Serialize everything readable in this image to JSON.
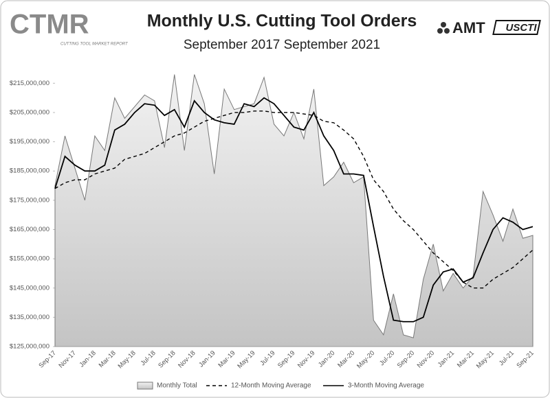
{
  "chart_data": {
    "type": "area_line",
    "title": "Monthly U.S. Cutting Tool Orders",
    "subtitle": "September 2017 September 2021",
    "branding": [
      "CTMR",
      "CUTTING TOOL MARKET REPORT",
      "AMT",
      "USCTI"
    ],
    "categories": [
      "Sep-17",
      null,
      "Nov-17",
      null,
      "Jan-18",
      null,
      "Mar-18",
      null,
      "May-18",
      null,
      "Jul-18",
      null,
      "Sep-18",
      null,
      "Nov-18",
      null,
      "Jan-19",
      null,
      "Mar-19",
      null,
      "May-19",
      null,
      "Jul-19",
      null,
      "Sep-19",
      null,
      "Nov-19",
      null,
      "Jan-20",
      null,
      "Mar-20",
      null,
      "May-20",
      null,
      "Jul-20",
      null,
      "Sep-20",
      null,
      "Nov-20",
      null,
      "Jan-21",
      null,
      "Mar-21",
      null,
      "May-21",
      null,
      "Jul-21",
      null,
      "Sep-21"
    ],
    "series": [
      {
        "name": "Monthly Total",
        "style": "area",
        "color": "#c4c4c4",
        "values": [
          180000000,
          197000000,
          186000000,
          175000000,
          197000000,
          192000000,
          210000000,
          203000000,
          207000000,
          211000000,
          209000000,
          193000000,
          218000000,
          192000000,
          218000000,
          208000000,
          184000000,
          213000000,
          206000000,
          207000000,
          208000000,
          217000000,
          201000000,
          197000000,
          205000000,
          196000000,
          213000000,
          180000000,
          183000000,
          188000000,
          181000000,
          183000000,
          134000000,
          129000000,
          143000000,
          129000000,
          128000000,
          148000000,
          160000000,
          144000000,
          150000000,
          145000000,
          149000000,
          178000000,
          170000000,
          161000000,
          172000000,
          162000000,
          163000000
        ]
      },
      {
        "name": "12-Month Moving Average",
        "style": "dashed",
        "color": "#000000",
        "values": [
          179000000,
          181000000,
          182000000,
          182000000,
          184000000,
          185000000,
          186000000,
          189000000,
          190000000,
          191000000,
          193000000,
          195000000,
          197000000,
          198000000,
          200000000,
          202000000,
          203000000,
          204000000,
          205000000,
          205000000,
          205500000,
          205500000,
          205000000,
          205000000,
          205000000,
          204500000,
          204000000,
          202000000,
          201500000,
          199000000,
          196000000,
          190000000,
          182000000,
          178000000,
          172000000,
          168000000,
          165000000,
          161000000,
          157000000,
          154000000,
          151000000,
          147000000,
          145000000,
          145000000,
          148000000,
          150000000,
          152000000,
          155000000,
          158000000
        ]
      },
      {
        "name": "3-Month Moving Average",
        "style": "solid",
        "color": "#000000",
        "values": [
          179000000,
          190000000,
          187000000,
          185000000,
          185000000,
          187000000,
          199000000,
          201000000,
          205000000,
          208000000,
          207500000,
          204000000,
          206000000,
          200000000,
          209000000,
          205000000,
          202500000,
          201500000,
          201000000,
          208000000,
          207000000,
          210000000,
          208000000,
          204000000,
          200000000,
          199000000,
          205000000,
          197000000,
          192000000,
          184000000,
          184000000,
          183500000,
          166000000,
          149000000,
          134000000,
          133500000,
          133500000,
          135000000,
          146000000,
          150500000,
          151500000,
          147000000,
          148500000,
          157000000,
          165000000,
          169000000,
          167500000,
          165000000,
          166000000
        ]
      }
    ],
    "ylim": [
      125000000,
      220000000
    ],
    "yticks": [
      {
        "value": 125000000,
        "label": "$125,000,000"
      },
      {
        "value": 135000000,
        "label": "$135,000,000"
      },
      {
        "value": 145000000,
        "label": "$145,000,000"
      },
      {
        "value": 155000000,
        "label": "$155,000,000"
      },
      {
        "value": 165000000,
        "label": "$165,000,000"
      },
      {
        "value": 175000000,
        "label": "$175,000,000"
      },
      {
        "value": 185000000,
        "label": "$185,000,000"
      },
      {
        "value": 195000000,
        "label": "$195,000,000"
      },
      {
        "value": 205000000,
        "label": "$205,000,000"
      },
      {
        "value": 215000000,
        "label": "$215,000,000"
      }
    ],
    "grid": false,
    "legend": "bottom"
  }
}
